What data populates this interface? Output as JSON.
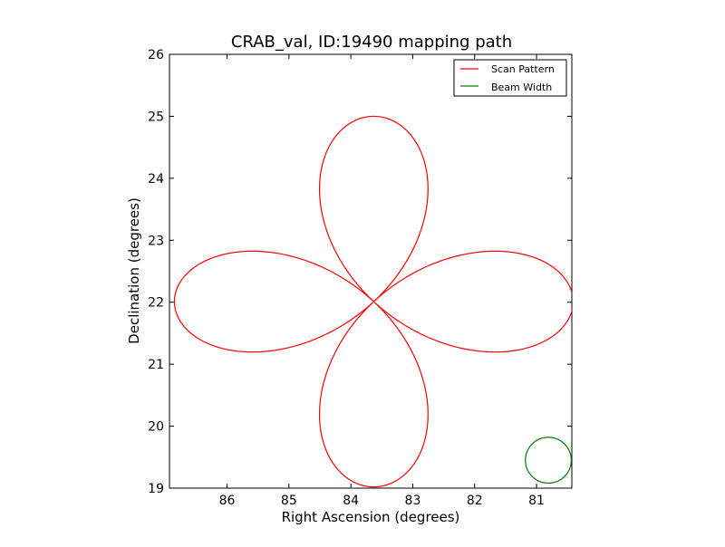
{
  "chart_data": {
    "type": "line",
    "title": "CRAB_val, ID:19490 mapping path",
    "xlabel": "Right Ascension (degrees)",
    "ylabel": "Declination (degrees)",
    "xlim": [
      86.93,
      80.43
    ],
    "ylim": [
      19,
      26
    ],
    "x_ticks": [
      "86",
      "85",
      "84",
      "83",
      "82",
      "81"
    ],
    "y_ticks": [
      "19",
      "20",
      "21",
      "22",
      "23",
      "24",
      "25",
      "26"
    ],
    "grid": false,
    "legend_position": "top-right",
    "legend": [
      "Scan Pattern",
      "Beam Width"
    ],
    "series": [
      {
        "name": "Scan Pattern",
        "color": "#ff0000",
        "shape": "four-petal rose curve",
        "center": [
          83.63,
          22.01
        ],
        "petal_tips": {
          "north": [
            83.63,
            25.0
          ],
          "south": [
            83.63,
            19.0
          ],
          "east": [
            80.41,
            22.01
          ],
          "west": [
            86.88,
            22.01
          ]
        }
      },
      {
        "name": "Beam Width",
        "color": "#008000",
        "shape": "circle",
        "center": [
          80.81,
          19.45
        ],
        "radius_deg": 0.37
      }
    ]
  }
}
